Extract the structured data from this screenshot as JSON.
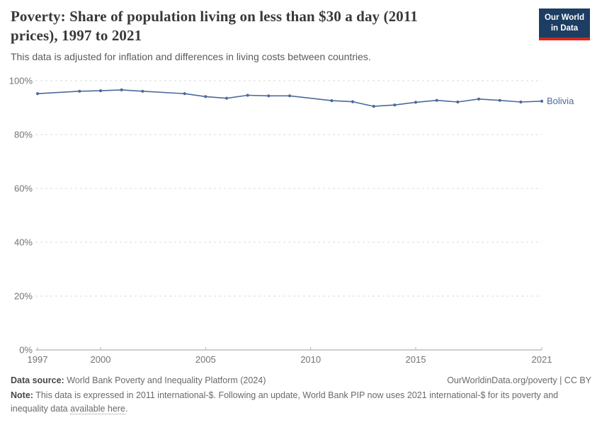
{
  "header": {
    "title": "Poverty: Share of population living on less than $30 a day (2011 prices), 1997 to 2021",
    "subtitle": "This data is adjusted for inflation and differences in living costs between countries.",
    "logo": {
      "line1": "Our World",
      "line2": "in Data"
    }
  },
  "chart_data": {
    "type": "line",
    "title": "Poverty: Share of population living on less than $30 a day (2011 prices), 1997 to 2021",
    "xlabel": "",
    "ylabel": "",
    "xlim": [
      1997,
      2021
    ],
    "ylim": [
      0,
      100
    ],
    "x_ticks": [
      1997,
      2000,
      2005,
      2010,
      2015,
      2021
    ],
    "y_ticks": [
      0,
      20,
      40,
      60,
      80,
      100
    ],
    "y_tick_suffix": "%",
    "grid": "horizontal-dashed",
    "legend_position": "end-of-line-label",
    "series": [
      {
        "name": "Bolivia",
        "color": "#4C6A9C",
        "points": [
          [
            1997,
            95.2
          ],
          [
            1999,
            96.1
          ],
          [
            2000,
            96.3
          ],
          [
            2001,
            96.6
          ],
          [
            2002,
            96.1
          ],
          [
            2004,
            95.2
          ],
          [
            2005,
            94.1
          ],
          [
            2006,
            93.5
          ],
          [
            2007,
            94.6
          ],
          [
            2008,
            94.4
          ],
          [
            2009,
            94.4
          ],
          [
            2011,
            92.6
          ],
          [
            2012,
            92.2
          ],
          [
            2013,
            90.5
          ],
          [
            2014,
            91.0
          ],
          [
            2015,
            92.0
          ],
          [
            2016,
            92.7
          ],
          [
            2017,
            92.1
          ],
          [
            2018,
            93.2
          ],
          [
            2019,
            92.7
          ],
          [
            2020,
            92.1
          ],
          [
            2021,
            92.4
          ]
        ]
      }
    ]
  },
  "footer": {
    "datasource_label": "Data source:",
    "datasource": "World Bank Poverty and Inequality Platform (2024)",
    "rights": "OurWorldinData.org/poverty | CC BY",
    "note_label": "Note:",
    "note_pre": "This data is expressed in 2011 international-$. Following an update, World Bank PIP now uses 2021 international-$ for its poverty and inequality data ",
    "note_link": "available here",
    "note_post": "."
  },
  "colors": {
    "line": "#4C6A9C",
    "logo_bg": "#1d3d63",
    "logo_red": "#d5281c",
    "gridline": "#dadada",
    "axis": "#9e9e9e",
    "tick_text": "#737373"
  }
}
